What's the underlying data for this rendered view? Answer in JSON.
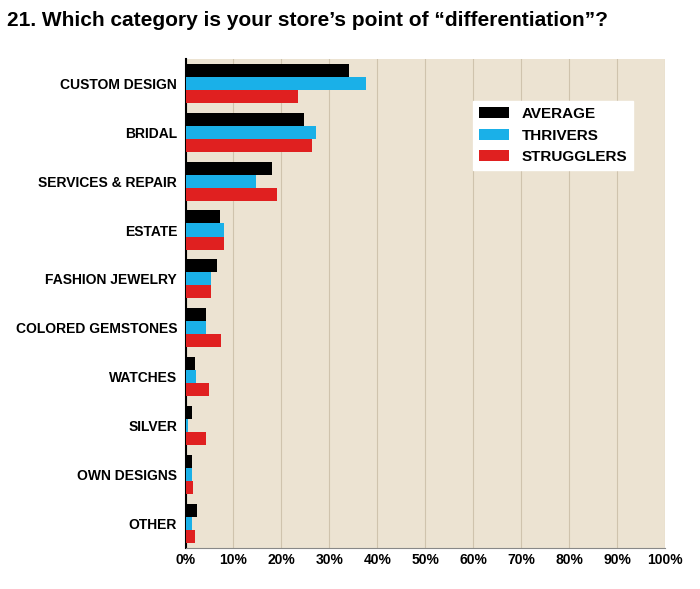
{
  "chart_data": {
    "type": "bar",
    "orientation": "horizontal",
    "title": "21. Which category is your store’s point of “differentiation”?",
    "categories": [
      "CUSTOM DESIGN",
      "BRIDAL",
      "SERVICES & REPAIR",
      "ESTATE",
      "FASHION JEWELRY",
      "COLORED GEMSTONES",
      "WATCHES",
      "SILVER",
      "OWN DESIGNS",
      "OTHER"
    ],
    "series": [
      {
        "name": "AVERAGE",
        "color": "#000000",
        "values": [
          34.2,
          24.7,
          18.0,
          7.1,
          6.5,
          4.2,
          1.9,
          1.3,
          1.3,
          2.5
        ]
      },
      {
        "name": "THRIVERS",
        "color": "#1ab0e8",
        "values": [
          37.7,
          27.3,
          14.7,
          8.0,
          5.4,
          4.2,
          2.1,
          0.6,
          1.3,
          1.3
        ]
      },
      {
        "name": "STRUGGLERS",
        "color": "#e02020",
        "values": [
          23.5,
          26.4,
          19.1,
          8.0,
          5.4,
          7.5,
          4.8,
          4.2,
          1.5,
          1.9
        ]
      }
    ],
    "xlim": [
      0,
      100
    ],
    "xticks": [
      {
        "value": 0,
        "label": "0%"
      },
      {
        "value": 10,
        "label": "10%"
      },
      {
        "value": 20,
        "label": "20%"
      },
      {
        "value": 30,
        "label": "30%"
      },
      {
        "value": 40,
        "label": "40%"
      },
      {
        "value": 50,
        "label": "50%"
      },
      {
        "value": 60,
        "label": "60%"
      },
      {
        "value": 70,
        "label": "70%"
      },
      {
        "value": 80,
        "label": "80%"
      },
      {
        "value": 90,
        "label": "90%"
      },
      {
        "value": 100,
        "label": "100%"
      }
    ],
    "grid": true,
    "legend": "upper right"
  }
}
